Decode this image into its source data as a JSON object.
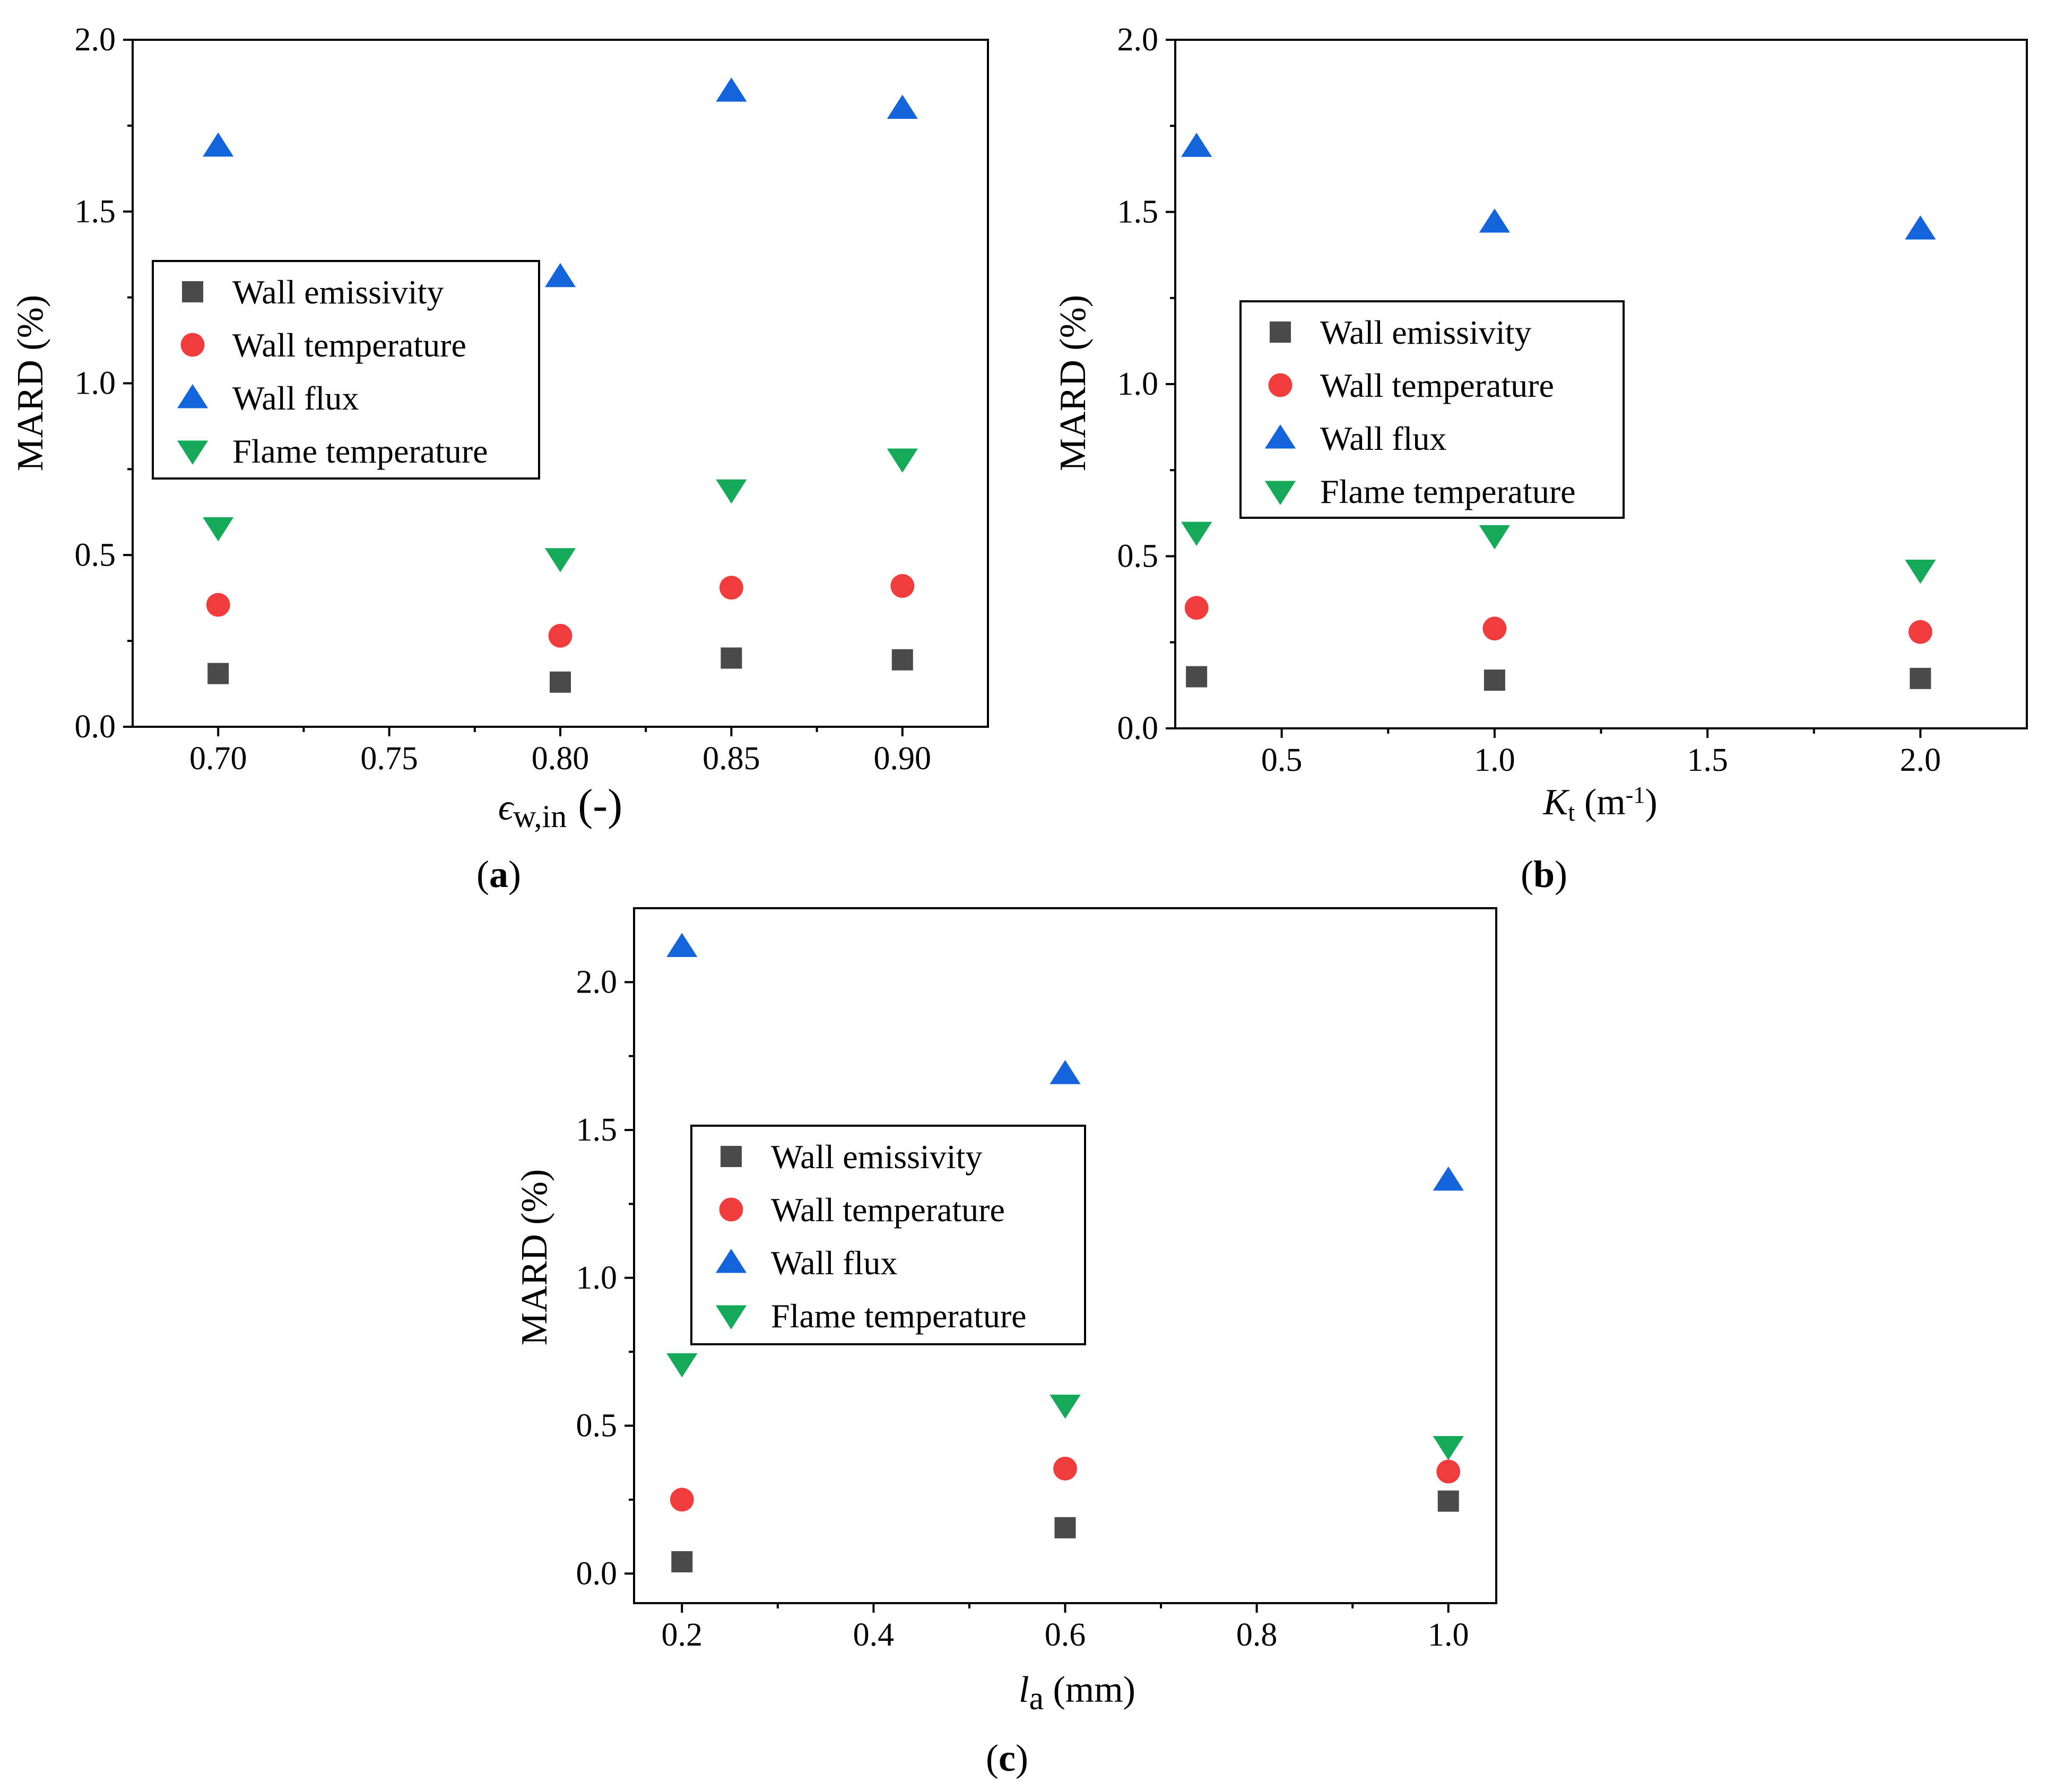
{
  "colors": {
    "wall_emissivity": "#4a4a4a",
    "wall_temperature": "#f03c3c",
    "wall_flux": "#1464dc",
    "flame_temperature": "#14aa5a"
  },
  "legend": {
    "items": [
      {
        "key": "wall_emissivity",
        "label": "Wall emissivity",
        "marker": "square"
      },
      {
        "key": "wall_temperature",
        "label": "Wall temperature",
        "marker": "circle"
      },
      {
        "key": "wall_flux",
        "label": "Wall flux",
        "marker": "triangle-up"
      },
      {
        "key": "flame_temperature",
        "label": "Flame temperature",
        "marker": "triangle-down"
      }
    ]
  },
  "panels": {
    "a": {
      "open": "(",
      "letter": "a",
      "close": ")"
    },
    "b": {
      "open": "(",
      "letter": "b",
      "close": ")"
    },
    "c": {
      "open": "(",
      "letter": "c",
      "close": ")"
    }
  },
  "chart_data": [
    {
      "id": "a",
      "type": "scatter",
      "xlabel": "ϵw,in (-)",
      "xlabel_parts": {
        "symbol": "ϵ",
        "sub": "w,in",
        "rest": " (-)"
      },
      "ylabel": "MARD (%)",
      "xlim": [
        0.675,
        0.925
      ],
      "ylim": [
        0,
        2.0
      ],
      "xticks": [
        0.7,
        0.75,
        0.8,
        0.85,
        0.9
      ],
      "xtick_labels": [
        "0.70",
        "0.75",
        "0.80",
        "0.85",
        "0.90"
      ],
      "yticks": [
        0,
        0.5,
        1.0,
        1.5,
        2.0
      ],
      "ytick_labels": [
        "0.0",
        "0.5",
        "1.0",
        "1.5",
        "2.0"
      ],
      "legend_position": "middle-left",
      "x": [
        0.7,
        0.8,
        0.85,
        0.9
      ],
      "series": [
        {
          "name": "Wall emissivity",
          "key": "wall_emissivity",
          "values": [
            0.155,
            0.13,
            0.2,
            0.195
          ]
        },
        {
          "name": "Wall temperature",
          "key": "wall_temperature",
          "values": [
            0.355,
            0.265,
            0.405,
            0.41
          ]
        },
        {
          "name": "Wall flux",
          "key": "wall_flux",
          "values": [
            1.69,
            1.31,
            1.85,
            1.8
          ]
        },
        {
          "name": "Flame temperature",
          "key": "flame_temperature",
          "values": [
            0.58,
            0.49,
            0.69,
            0.78
          ]
        }
      ]
    },
    {
      "id": "b",
      "type": "scatter",
      "xlabel": "Kt (m-1)",
      "xlabel_parts": {
        "symbol": "K",
        "sub": "t",
        "rest": " (m",
        "sup": "-1",
        "end": ")"
      },
      "ylabel": "MARD (%)",
      "xlim": [
        0.25,
        2.25
      ],
      "ylim": [
        0,
        2.0
      ],
      "xticks": [
        0.5,
        1.0,
        1.5,
        2.0
      ],
      "xtick_labels": [
        "0.5",
        "1.0",
        "1.5",
        "2.0"
      ],
      "yticks": [
        0,
        0.5,
        1.0,
        1.5,
        2.0
      ],
      "ytick_labels": [
        "0.0",
        "0.5",
        "1.0",
        "1.5",
        "2.0"
      ],
      "legend_position": "middle-center",
      "x": [
        0.3,
        1.0,
        2.0
      ],
      "series": [
        {
          "name": "Wall emissivity",
          "key": "wall_emissivity",
          "values": [
            0.15,
            0.14,
            0.145
          ]
        },
        {
          "name": "Wall temperature",
          "key": "wall_temperature",
          "values": [
            0.35,
            0.29,
            0.28
          ]
        },
        {
          "name": "Wall flux",
          "key": "wall_flux",
          "values": [
            1.69,
            1.47,
            1.45
          ]
        },
        {
          "name": "Flame temperature",
          "key": "flame_temperature",
          "values": [
            0.57,
            0.56,
            0.46
          ]
        }
      ]
    },
    {
      "id": "c",
      "type": "scatter",
      "xlabel": "la (mm)",
      "xlabel_parts": {
        "symbol": "l",
        "sub": "a",
        "rest": " (mm)"
      },
      "ylabel": "MARD (%)",
      "xlim": [
        0.15,
        1.05
      ],
      "ylim": [
        -0.1,
        2.25
      ],
      "xticks": [
        0.2,
        0.4,
        0.6,
        0.8,
        1.0
      ],
      "xtick_labels": [
        "0.2",
        "0.4",
        "0.6",
        "0.8",
        "1.0"
      ],
      "yticks": [
        0,
        0.5,
        1.0,
        1.5,
        2.0
      ],
      "ytick_labels": [
        "0.0",
        "0.5",
        "1.0",
        "1.5",
        "2.0"
      ],
      "legend_position": "middle-center",
      "x": [
        0.2,
        0.6,
        1.0
      ],
      "series": [
        {
          "name": "Wall emissivity",
          "key": "wall_emissivity",
          "values": [
            0.04,
            0.155,
            0.245
          ]
        },
        {
          "name": "Wall temperature",
          "key": "wall_temperature",
          "values": [
            0.25,
            0.355,
            0.345
          ]
        },
        {
          "name": "Wall flux",
          "key": "wall_flux",
          "values": [
            2.12,
            1.69,
            1.33
          ]
        },
        {
          "name": "Flame temperature",
          "key": "flame_temperature",
          "values": [
            0.71,
            0.57,
            0.43
          ]
        }
      ]
    }
  ]
}
